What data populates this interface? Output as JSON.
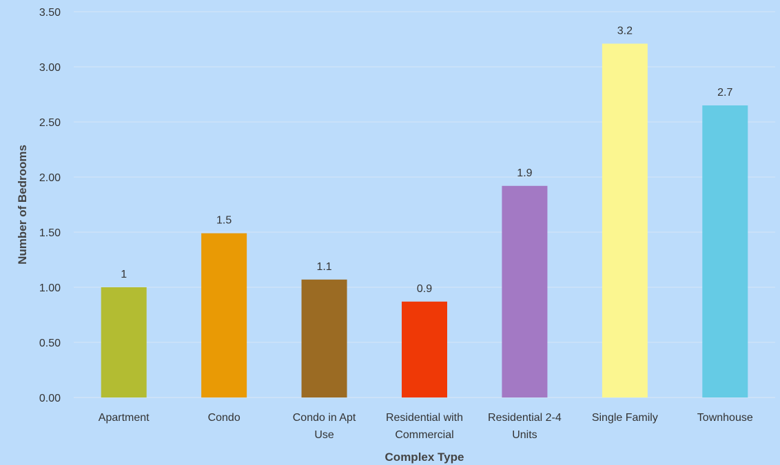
{
  "chart_data": {
    "type": "bar",
    "title": "",
    "xlabel": "Complex Type",
    "ylabel": "Number of Bedrooms",
    "ylim": [
      0,
      3.5
    ],
    "yticks": [
      "0.00",
      "0.50",
      "1.00",
      "1.50",
      "2.00",
      "2.50",
      "3.00",
      "3.50"
    ],
    "ytick_values": [
      0,
      0.5,
      1,
      1.5,
      2,
      2.5,
      3,
      3.5
    ],
    "grid": true,
    "legend": "none",
    "categories": [
      [
        "Apartment"
      ],
      [
        "Condo"
      ],
      [
        "Condo in Apt",
        "Use"
      ],
      [
        "Residential with",
        "Commercial"
      ],
      [
        "Residential 2-4",
        "Units"
      ],
      [
        "Single Family"
      ],
      [
        "Townhouse"
      ]
    ],
    "values": [
      1.0,
      1.49,
      1.07,
      0.87,
      1.92,
      3.21,
      2.65
    ],
    "data_labels": [
      "1",
      "1.5",
      "1.1",
      "0.9",
      "1.9",
      "3.2",
      "2.7"
    ],
    "colors": [
      "#b3bc32",
      "#e99a05",
      "#9b6b23",
      "#ef3906",
      "#a379c4",
      "#fbf690",
      "#65cbe5"
    ]
  }
}
